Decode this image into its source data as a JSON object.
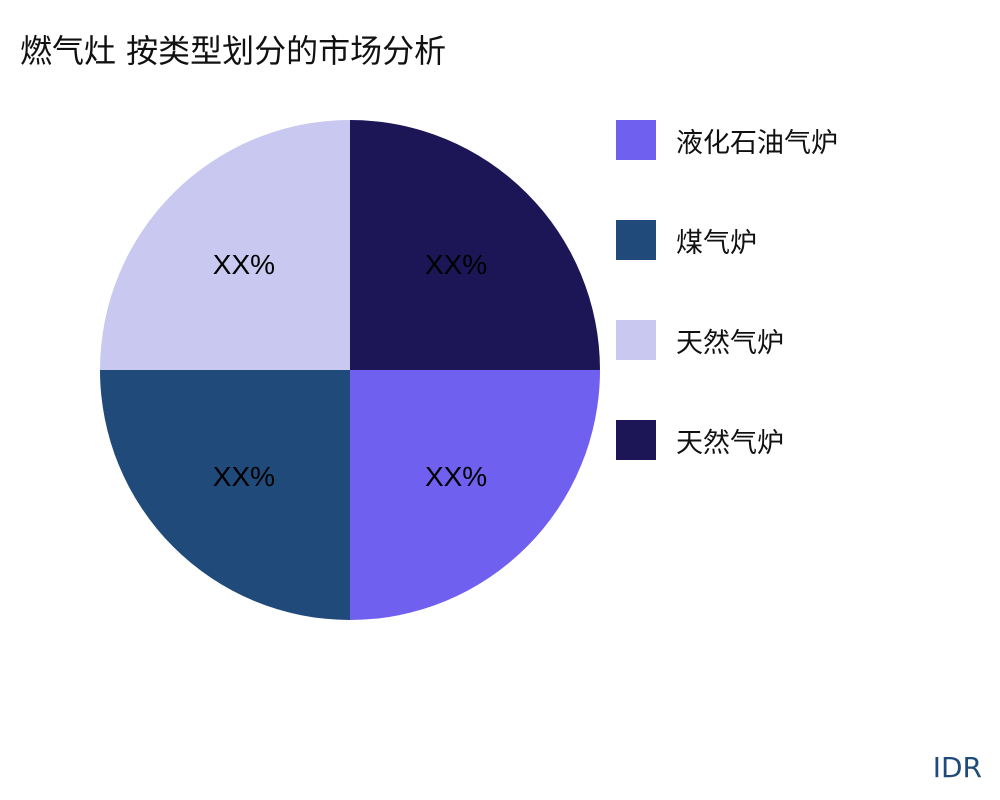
{
  "chart_data": {
    "type": "pie",
    "title": "燃气灶 按类型划分的市场分析",
    "slices": [
      {
        "label": "液化石油气炉",
        "value": 25,
        "data_label": "XX%",
        "color": "#7060f0"
      },
      {
        "label": "煤气炉",
        "value": 25,
        "data_label": "XX%",
        "color": "#1f4a7a"
      },
      {
        "label": "天然气炉",
        "value": 25,
        "data_label": "XX%",
        "color": "#c8c8f0"
      },
      {
        "label": "天然气炉",
        "value": 25,
        "data_label": "XX%",
        "color": "#1c1656"
      }
    ],
    "legend_position": "right"
  },
  "brand": "IDR"
}
